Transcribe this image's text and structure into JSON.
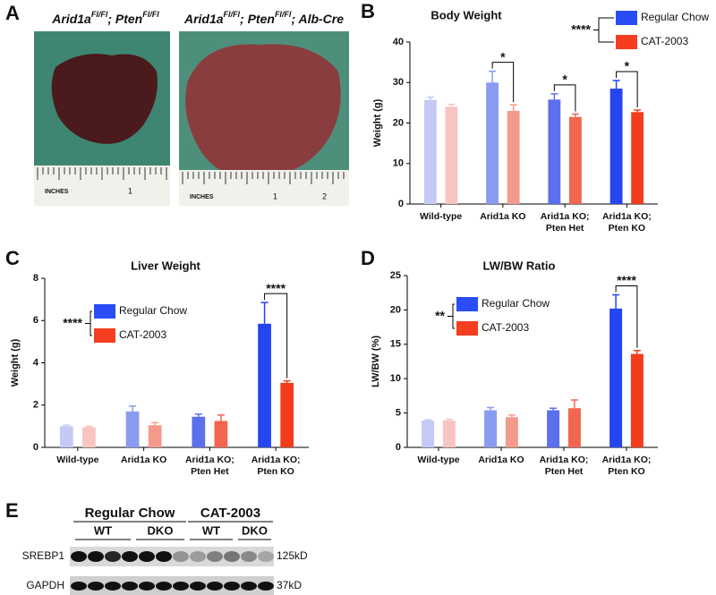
{
  "chart_data": [
    {
      "type": "bar",
      "panel": "B",
      "title": "Body Weight",
      "y_label": "Weight (g)",
      "categories": [
        [
          "Wild-type"
        ],
        [
          "Arid1a KO"
        ],
        [
          "Arid1a KO;",
          "Pten Het"
        ],
        [
          "Arid1a KO;",
          "Pten KO"
        ]
      ],
      "ylim": [
        0,
        40
      ],
      "yticks": [
        0,
        10,
        20,
        30,
        40
      ],
      "series": [
        {
          "name": "Regular Chow",
          "color": "#2a4cf5",
          "colors": [
            "#c5c9f6",
            "#8a9bf2",
            "#5c70ee",
            "#2545f0"
          ],
          "values": [
            25.7,
            30,
            25.8,
            28.5
          ],
          "errors": [
            0.7,
            2.8,
            1.4,
            2
          ]
        },
        {
          "name": "CAT-2003",
          "color": "#f53d1f",
          "colors": [
            "#f8c4c0",
            "#f39a8c",
            "#f2664f",
            "#f23c1c"
          ],
          "values": [
            24,
            23,
            21.5,
            22.7
          ],
          "errors": [
            0.6,
            1.5,
            0.7,
            0.5
          ]
        }
      ],
      "annotations": [
        {
          "category": 1,
          "label": "*"
        },
        {
          "category": 2,
          "label": "*"
        },
        {
          "category": 3,
          "label": "*"
        }
      ],
      "legend_significance": "****"
    },
    {
      "type": "bar",
      "panel": "C",
      "title": "Liver Weight",
      "y_label": "Weight (g)",
      "categories": [
        [
          "Wild-type"
        ],
        [
          "Arid1a KO"
        ],
        [
          "Arid1a KO;",
          "Pten Het"
        ],
        [
          "Arid1a KO;",
          "Pten KO"
        ]
      ],
      "ylim": [
        0,
        8
      ],
      "yticks": [
        0,
        2,
        4,
        6,
        8
      ],
      "series": [
        {
          "name": "Regular Chow",
          "color": "#2a4cf5",
          "colors": [
            "#c5c9f6",
            "#8a9bf2",
            "#5c70ee",
            "#2545f0"
          ],
          "values": [
            1.0,
            1.7,
            1.45,
            5.85
          ],
          "errors": [
            0.05,
            0.25,
            0.12,
            1.0
          ]
        },
        {
          "name": "CAT-2003",
          "color": "#f53d1f",
          "colors": [
            "#f8c4c0",
            "#f39a8c",
            "#f2664f",
            "#f23c1c"
          ],
          "values": [
            0.95,
            1.05,
            1.25,
            3.05
          ],
          "errors": [
            0.04,
            0.12,
            0.28,
            0.1
          ]
        }
      ],
      "annotations": [
        {
          "category": 3,
          "label": "****"
        }
      ],
      "legend_significance": "****"
    },
    {
      "type": "bar",
      "panel": "D",
      "title": "LW/BW Ratio",
      "y_label": "LW/BW (%)",
      "categories": [
        [
          "Wild-type"
        ],
        [
          "Arid1a KO"
        ],
        [
          "Arid1a KO;",
          "Pten Het"
        ],
        [
          "Arid1a KO;",
          "Pten KO"
        ]
      ],
      "ylim": [
        0,
        25
      ],
      "yticks": [
        0,
        5,
        10,
        15,
        20,
        25
      ],
      "series": [
        {
          "name": "Regular Chow",
          "color": "#2a4cf5",
          "colors": [
            "#c5c9f6",
            "#8a9bf2",
            "#5c70ee",
            "#2545f0"
          ],
          "values": [
            3.9,
            5.4,
            5.4,
            20.2
          ],
          "errors": [
            0.1,
            0.4,
            0.3,
            2.0
          ]
        },
        {
          "name": "CAT-2003",
          "color": "#f53d1f",
          "colors": [
            "#f8c4c0",
            "#f39a8c",
            "#f2664f",
            "#f23c1c"
          ],
          "values": [
            3.9,
            4.4,
            5.7,
            13.6
          ],
          "errors": [
            0.2,
            0.3,
            1.2,
            0.5
          ]
        }
      ],
      "annotations": [
        {
          "category": 3,
          "label": "****"
        }
      ],
      "legend_significance": "**"
    }
  ],
  "panel_a": {
    "panel": "A",
    "photos": [
      {
        "label": [
          {
            "text": "Arid1a"
          },
          {
            "text": "Fl/Fl",
            "sup": true
          },
          {
            "text": "; Pten"
          },
          {
            "text": "Fl/Fl",
            "sup": true
          }
        ],
        "ruler": [
          "INCHES",
          "1"
        ]
      },
      {
        "label": [
          {
            "text": "Arid1a"
          },
          {
            "text": "Fl/Fl",
            "sup": true
          },
          {
            "text": "; Pten"
          },
          {
            "text": "Fl/Fl",
            "sup": true
          },
          {
            "text": "; Alb-Cre"
          }
        ],
        "ruler": [
          "INCHES",
          "1",
          "2"
        ]
      }
    ]
  },
  "panel_e": {
    "panel": "E",
    "groups": [
      "Regular Chow",
      "CAT-2003"
    ],
    "subgroups": [
      "WT",
      "DKO",
      "WT",
      "DKO"
    ],
    "rows": [
      {
        "protein": "SREBP1",
        "size": "125kD"
      },
      {
        "protein": "GAPDH",
        "size": "37kD"
      }
    ]
  }
}
